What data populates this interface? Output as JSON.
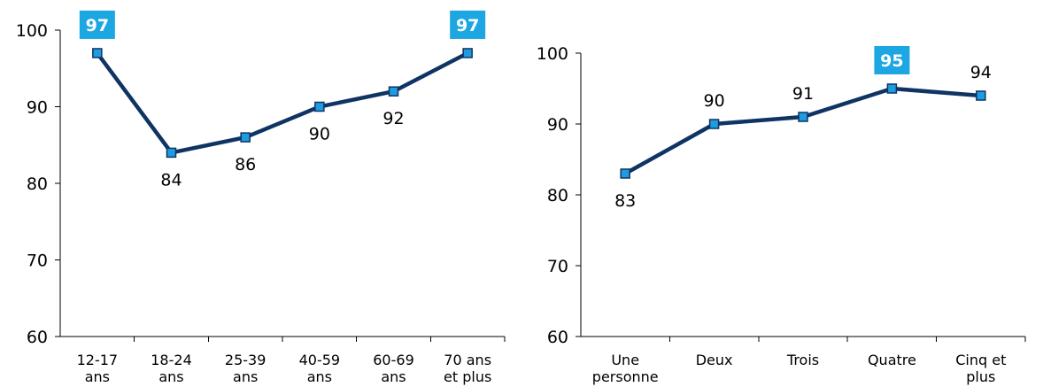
{
  "colors": {
    "line": "#0f3463",
    "marker_fill": "#1f9be0",
    "marker_stroke": "#0f3463",
    "highlight_box": "#1ca6e2",
    "highlight_text": "#ffffff"
  },
  "chart_data": [
    {
      "type": "line",
      "categories": [
        "12-17\nans",
        "18-24\nans",
        "25-39\nans",
        "40-59\nans",
        "60-69\nans",
        "70 ans\net plus"
      ],
      "values": [
        97,
        84,
        86,
        90,
        92,
        97
      ],
      "data_labels": [
        "97",
        "84",
        "86",
        "90",
        "92",
        "97"
      ],
      "label_placement": [
        "above",
        "below",
        "below",
        "below",
        "below",
        "above"
      ],
      "highlighted": [
        true,
        false,
        false,
        false,
        false,
        true
      ],
      "ylim": [
        60,
        100
      ],
      "yticks": [
        60,
        70,
        80,
        90,
        100
      ],
      "ytick_labels": [
        "60",
        "70",
        "80",
        "90",
        "100"
      ],
      "title": "",
      "xlabel": "",
      "ylabel": "",
      "grid": false,
      "legend": false,
      "markers": "square"
    },
    {
      "type": "line",
      "categories": [
        "Une\npersonne",
        "Deux",
        "Trois",
        "Quatre",
        "Cinq et\nplus"
      ],
      "values": [
        83,
        90,
        91,
        95,
        94
      ],
      "data_labels": [
        "83",
        "90",
        "91",
        "95",
        "94"
      ],
      "label_placement": [
        "below",
        "above",
        "above",
        "above",
        "above"
      ],
      "highlighted": [
        false,
        false,
        false,
        true,
        false
      ],
      "ylim": [
        60,
        100
      ],
      "yticks": [
        60,
        70,
        80,
        90,
        100
      ],
      "ytick_labels": [
        "60",
        "70",
        "80",
        "90",
        "100"
      ],
      "title": "",
      "xlabel": "",
      "ylabel": "",
      "grid": false,
      "legend": false,
      "markers": "square"
    }
  ]
}
